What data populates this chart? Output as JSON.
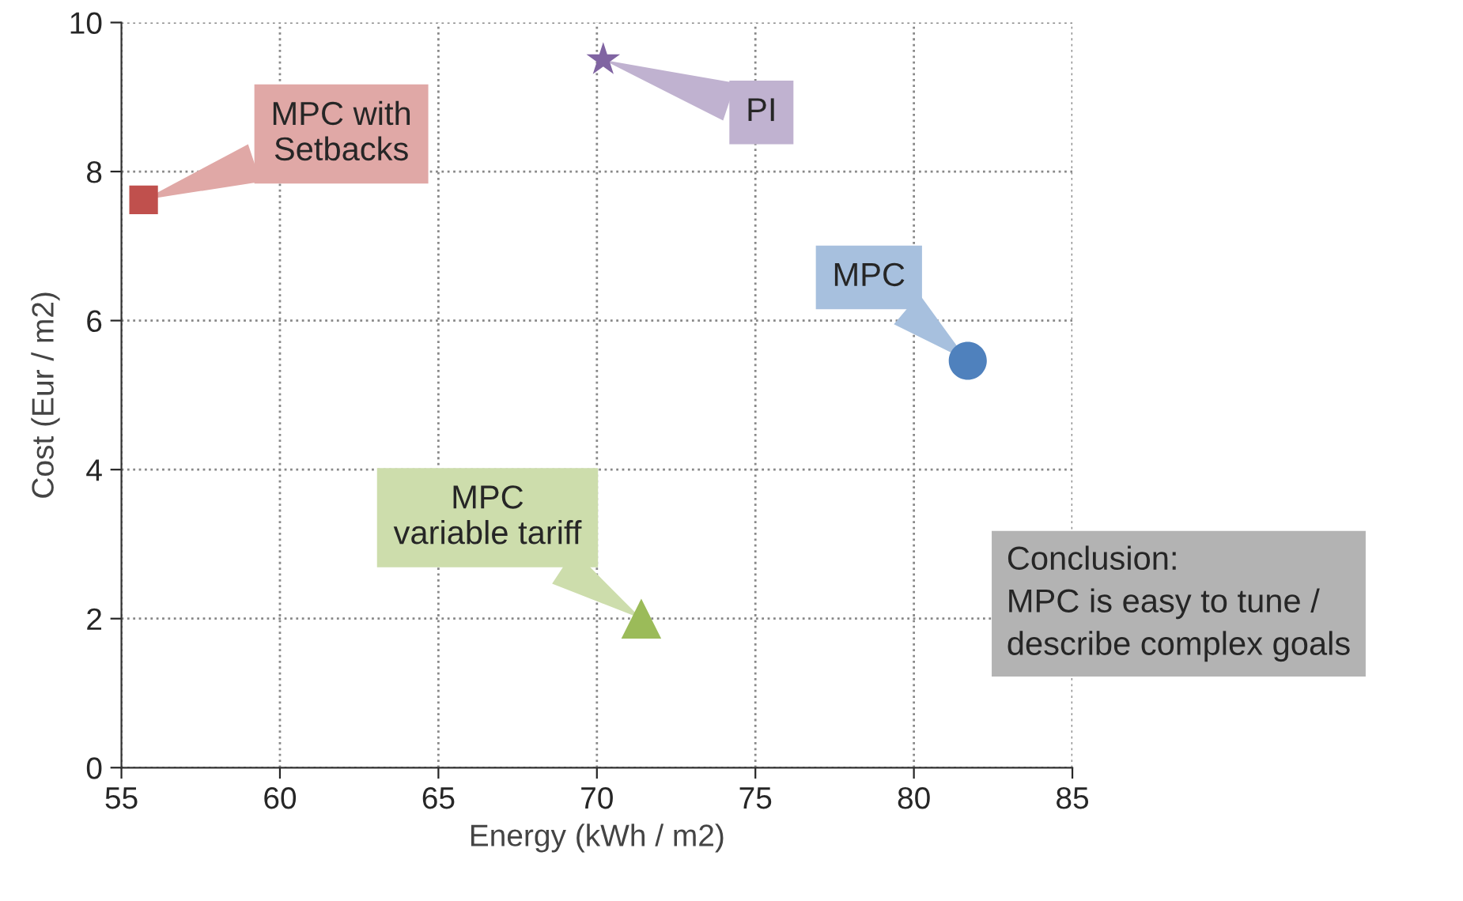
{
  "chart_data": {
    "type": "scatter",
    "xlabel": "Energy (kWh / m2)",
    "ylabel": "Cost (Eur / m2)",
    "xlim": [
      55,
      85
    ],
    "xticks": [
      55,
      60,
      65,
      70,
      75,
      80,
      85
    ],
    "ylim": [
      0,
      10
    ],
    "yticks": [
      0,
      2,
      4,
      6,
      8,
      10
    ],
    "grid": true,
    "series": [
      {
        "type": "scatter",
        "marker": "square",
        "color": "#c0504d",
        "x": [
          55.7
        ],
        "values": [
          7.62
        ]
      },
      {
        "type": "scatter",
        "marker": "star",
        "color": "#8064a2",
        "x": [
          70.2
        ],
        "values": [
          9.5
        ]
      },
      {
        "type": "scatter",
        "marker": "circle",
        "color": "#4f81bd",
        "x": [
          81.7
        ],
        "values": [
          5.46
        ]
      },
      {
        "type": "scatter",
        "marker": "triangle",
        "color": "#9bbb59",
        "x": [
          71.4
        ],
        "values": [
          2.0
        ]
      }
    ],
    "annotations": [
      {
        "text": "MPC with\nSetbacks",
        "x": 55.7,
        "y": 7.62
      },
      {
        "text": "PI",
        "x": 70.2,
        "y": 9.5
      },
      {
        "text": "MPC",
        "x": 81.7,
        "y": 5.46
      },
      {
        "text": "MPC\nvariable tariff",
        "x": 71.4,
        "y": 2.0
      },
      "Conclusion:\nMPC is easy to tune /\ndescribe complex goals"
    ]
  }
}
